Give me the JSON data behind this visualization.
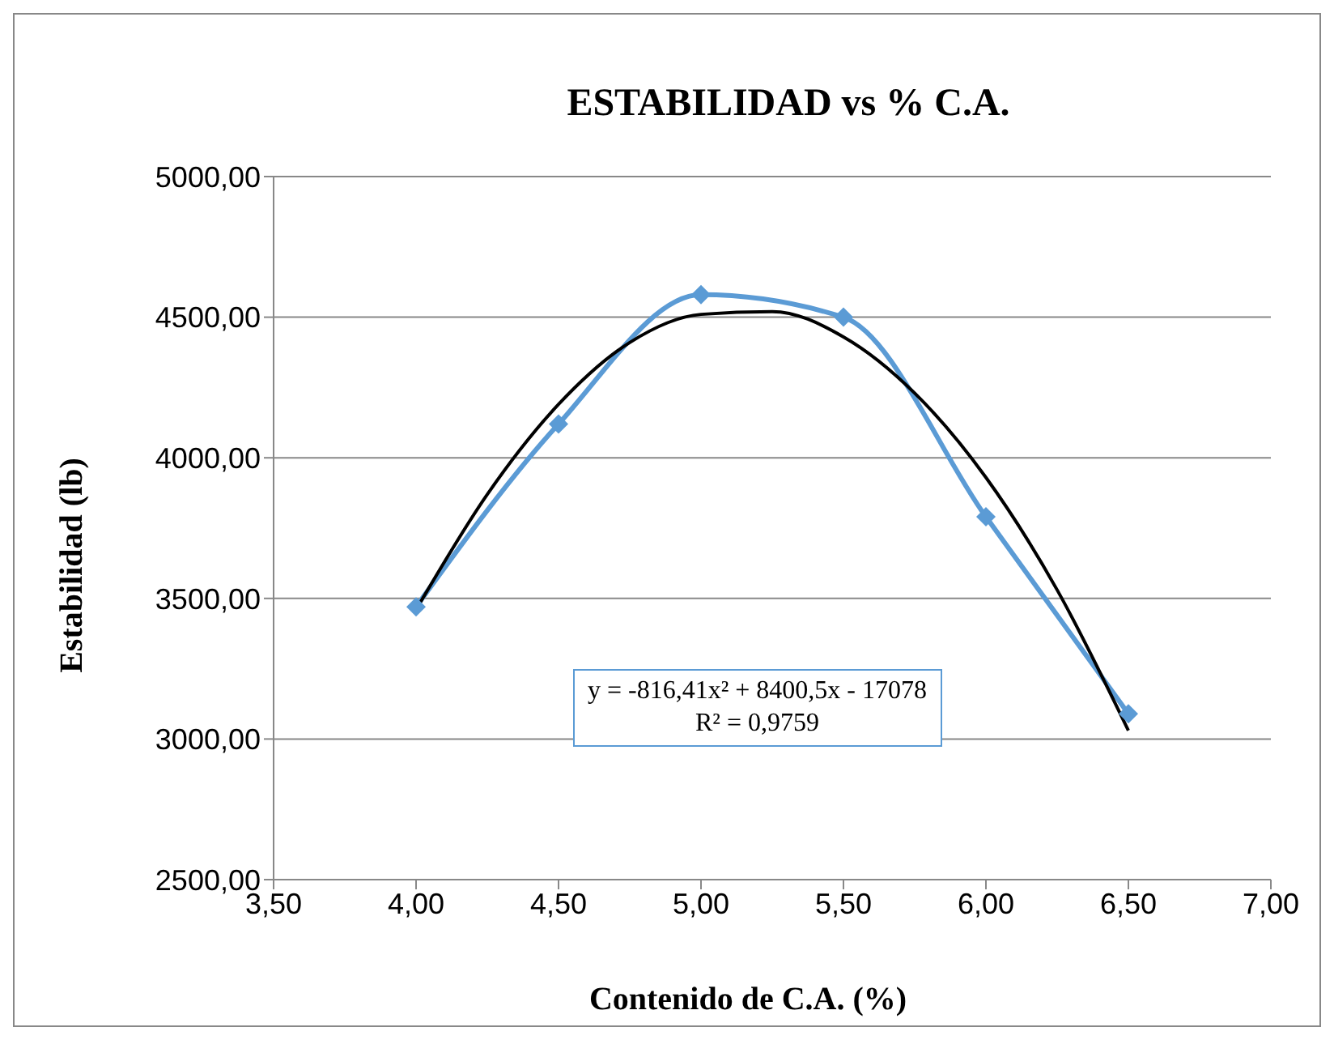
{
  "chart_data": {
    "type": "line",
    "title": "ESTABILIDAD vs % C.A.",
    "xlabel": "Contenido de C.A. (%)",
    "ylabel": "Estabilidad (lb)",
    "x": [
      4.0,
      4.5,
      5.0,
      5.5,
      6.0,
      6.5
    ],
    "series": [
      {
        "color": "#5b9bd5",
        "marker": "diamond",
        "values": [
          3470,
          4120,
          4580,
          4500,
          3790,
          3090
        ]
      },
      {
        "color": "#000000",
        "marker": "none",
        "x": [
          4.0,
          4.25,
          4.5,
          4.75,
          5.0,
          5.25,
          5.5,
          5.75,
          6.0,
          6.25,
          6.5
        ],
        "values": [
          3460,
          3870,
          4190,
          4410,
          4510,
          4520,
          4430,
          4230,
          3930,
          3530,
          3030
        ]
      }
    ],
    "xlim": [
      3.5,
      7.0
    ],
    "xticks": [
      {
        "value": 3.5,
        "label": "3,50"
      },
      {
        "value": 4,
        "label": "4,00"
      },
      {
        "value": 4.5,
        "label": "4,50"
      },
      {
        "value": 5,
        "label": "5,00"
      },
      {
        "value": 5.5,
        "label": "5,50"
      },
      {
        "value": 6,
        "label": "6,00"
      },
      {
        "value": 6.5,
        "label": "6,50"
      },
      {
        "value": 7,
        "label": "7,00"
      }
    ],
    "ylim": [
      2500,
      5000
    ],
    "yticks": [
      {
        "value": 2500,
        "label": "2500,00"
      },
      {
        "value": 3000,
        "label": "3000,00"
      },
      {
        "value": 3500,
        "label": "3500,00"
      },
      {
        "value": 4000,
        "label": "4000,00"
      },
      {
        "value": 4500,
        "label": "4500,00"
      },
      {
        "value": 5000,
        "label": "5000,00"
      }
    ],
    "grid": "y",
    "annotations": [
      "y = -816,41x² + 8400,5x - 17078",
      "R² = 0,9759"
    ]
  }
}
